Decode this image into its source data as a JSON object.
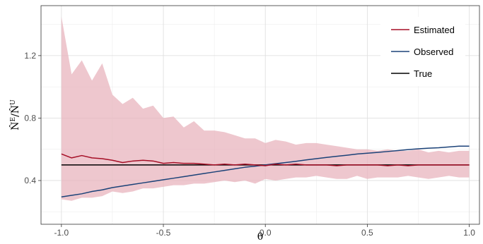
{
  "chart_data": {
    "type": "line",
    "xlabel": "θ",
    "ylabel_base": "N",
    "ylabel_sup_top": "E",
    "ylabel_sup_bottom": "U",
    "xlim": [
      -1.1,
      1.05
    ],
    "ylim": [
      0.12,
      1.52
    ],
    "x_ticks": [
      -1.0,
      -0.5,
      0.0,
      0.5,
      1.0
    ],
    "x_tick_labels": [
      "-1.0",
      "-0.5",
      "0.0",
      "0.5",
      "1.0"
    ],
    "y_ticks": [
      0.4,
      0.8,
      1.2
    ],
    "y_tick_labels": [
      "0.4",
      "0.8",
      "1.2"
    ],
    "grid": true,
    "legend_position": "top-right",
    "x": [
      -1.0,
      -0.95,
      -0.9,
      -0.85,
      -0.8,
      -0.75,
      -0.7,
      -0.65,
      -0.6,
      -0.55,
      -0.5,
      -0.45,
      -0.4,
      -0.35,
      -0.3,
      -0.25,
      -0.2,
      -0.15,
      -0.1,
      -0.05,
      0.0,
      0.05,
      0.1,
      0.15,
      0.2,
      0.25,
      0.3,
      0.35,
      0.4,
      0.45,
      0.5,
      0.55,
      0.6,
      0.65,
      0.7,
      0.75,
      0.8,
      0.85,
      0.9,
      0.95,
      1.0
    ],
    "series": [
      {
        "name": "Estimated",
        "color": "#A50F26",
        "values": [
          0.57,
          0.545,
          0.56,
          0.545,
          0.54,
          0.53,
          0.515,
          0.525,
          0.53,
          0.525,
          0.51,
          0.515,
          0.51,
          0.51,
          0.505,
          0.5,
          0.505,
          0.5,
          0.505,
          0.5,
          0.495,
          0.505,
          0.5,
          0.505,
          0.5,
          0.5,
          0.5,
          0.495,
          0.5,
          0.5,
          0.5,
          0.5,
          0.495,
          0.5,
          0.495,
          0.5,
          0.5,
          0.5,
          0.5,
          0.5,
          0.5
        ],
        "band_upper": [
          1.45,
          1.08,
          1.17,
          1.04,
          1.15,
          0.95,
          0.89,
          0.93,
          0.86,
          0.88,
          0.8,
          0.81,
          0.74,
          0.78,
          0.72,
          0.72,
          0.71,
          0.69,
          0.67,
          0.67,
          0.64,
          0.66,
          0.65,
          0.63,
          0.64,
          0.64,
          0.63,
          0.62,
          0.61,
          0.6,
          0.6,
          0.59,
          0.6,
          0.59,
          0.59,
          0.6,
          0.58,
          0.59,
          0.58,
          0.59,
          0.59
        ],
        "band_lower": [
          0.28,
          0.27,
          0.29,
          0.29,
          0.3,
          0.33,
          0.32,
          0.33,
          0.35,
          0.35,
          0.36,
          0.37,
          0.37,
          0.38,
          0.38,
          0.39,
          0.4,
          0.39,
          0.4,
          0.38,
          0.41,
          0.4,
          0.41,
          0.42,
          0.42,
          0.43,
          0.42,
          0.41,
          0.41,
          0.43,
          0.41,
          0.42,
          0.42,
          0.42,
          0.43,
          0.42,
          0.41,
          0.42,
          0.43,
          0.42,
          0.42
        ]
      },
      {
        "name": "Observed",
        "color": "#1B4278",
        "values": [
          0.295,
          0.305,
          0.315,
          0.33,
          0.34,
          0.355,
          0.365,
          0.375,
          0.385,
          0.395,
          0.405,
          0.415,
          0.425,
          0.435,
          0.445,
          0.455,
          0.465,
          0.475,
          0.485,
          0.492,
          0.5,
          0.508,
          0.515,
          0.523,
          0.532,
          0.54,
          0.548,
          0.555,
          0.562,
          0.57,
          0.575,
          0.58,
          0.586,
          0.592,
          0.598,
          0.603,
          0.607,
          0.61,
          0.615,
          0.62,
          0.62
        ]
      },
      {
        "name": "True",
        "color": "#000000",
        "values": [
          0.5,
          0.5,
          0.5,
          0.5,
          0.5,
          0.5,
          0.5,
          0.5,
          0.5,
          0.5,
          0.5,
          0.5,
          0.5,
          0.5,
          0.5,
          0.5,
          0.5,
          0.5,
          0.5,
          0.5,
          0.5,
          0.5,
          0.5,
          0.5,
          0.5,
          0.5,
          0.5,
          0.5,
          0.5,
          0.5,
          0.5,
          0.5,
          0.5,
          0.5,
          0.5,
          0.5,
          0.5,
          0.5,
          0.5,
          0.5,
          0.5
        ]
      }
    ],
    "band_color": "#E8B4BE"
  }
}
